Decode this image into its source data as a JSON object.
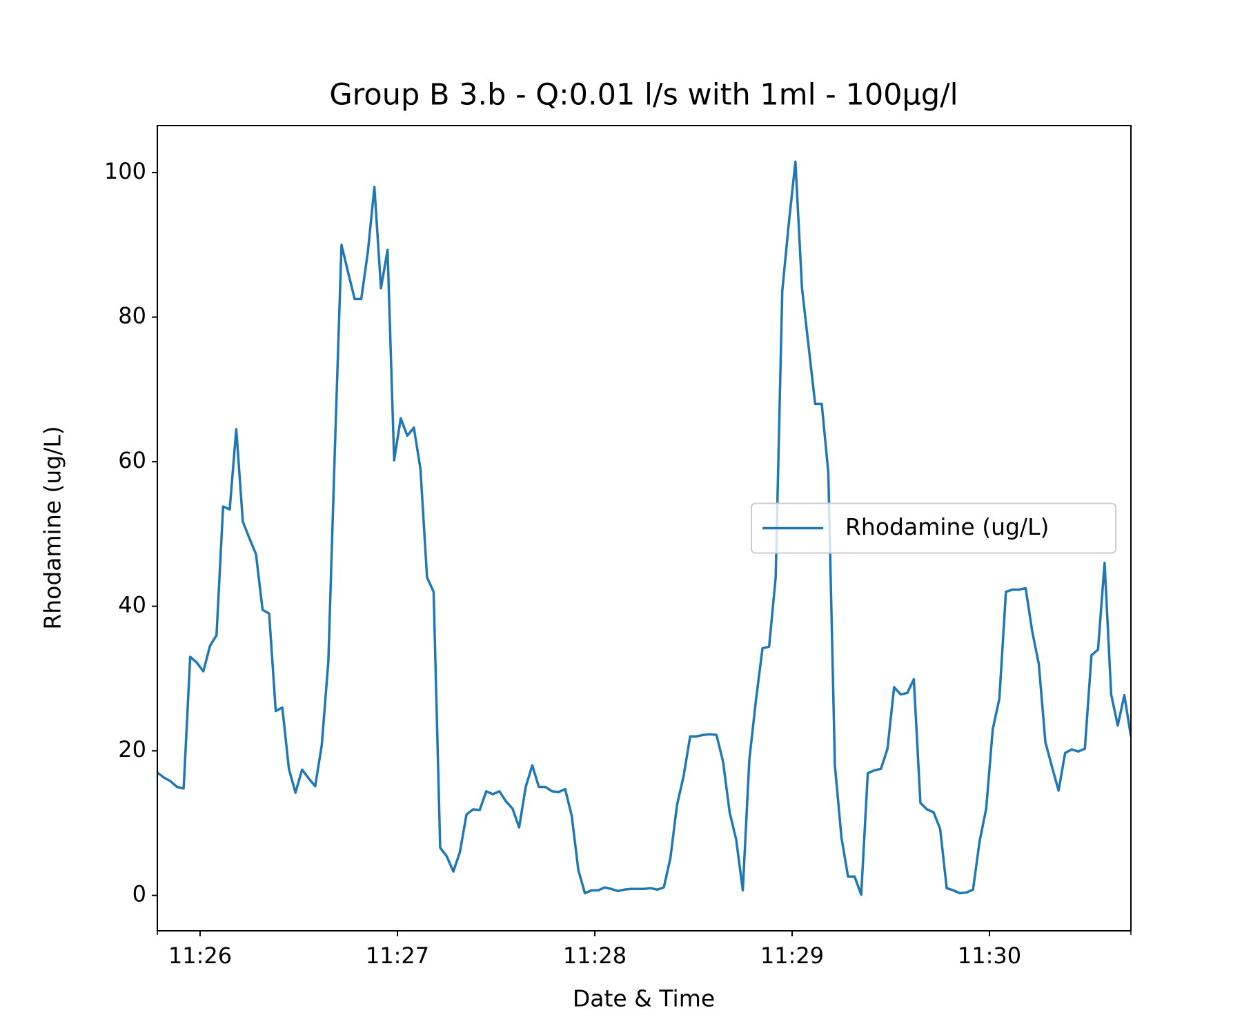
{
  "chart_data": {
    "type": "line",
    "title": "Group B 3.b - Q:0.01 l/s with 1ml - 100μg/l",
    "xlabel": "Date & Time",
    "ylabel": "Rhodamine (ug/L)",
    "x": [
      "11:25:47",
      "11:25:49",
      "11:25:51",
      "11:25:53",
      "11:25:55",
      "11:25:57",
      "11:25:59",
      "11:26:01",
      "11:26:03",
      "11:26:05",
      "11:26:07",
      "11:26:09",
      "11:26:11",
      "11:26:13",
      "11:26:15",
      "11:26:17",
      "11:26:19",
      "11:26:21",
      "11:26:23",
      "11:26:25",
      "11:26:27",
      "11:26:29",
      "11:26:31",
      "11:26:33",
      "11:26:35",
      "11:26:37",
      "11:26:39",
      "11:26:41",
      "11:26:43",
      "11:26:45",
      "11:26:47",
      "11:26:49",
      "11:26:51",
      "11:26:53",
      "11:26:55",
      "11:26:57",
      "11:26:59",
      "11:27:01",
      "11:27:03",
      "11:27:05",
      "11:27:07",
      "11:27:09",
      "11:27:11",
      "11:27:13",
      "11:27:15",
      "11:27:17",
      "11:27:19",
      "11:27:21",
      "11:27:23",
      "11:27:25",
      "11:27:27",
      "11:27:29",
      "11:27:31",
      "11:27:33",
      "11:27:35",
      "11:27:37",
      "11:27:39",
      "11:27:41",
      "11:27:43",
      "11:27:45",
      "11:27:47",
      "11:27:49",
      "11:27:51",
      "11:27:53",
      "11:27:55",
      "11:27:57",
      "11:27:59",
      "11:28:01",
      "11:28:03",
      "11:28:05",
      "11:28:07",
      "11:28:09",
      "11:28:11",
      "11:28:13",
      "11:28:15",
      "11:28:17",
      "11:28:19",
      "11:28:21",
      "11:28:23",
      "11:28:25",
      "11:28:27",
      "11:28:29",
      "11:28:31",
      "11:28:33",
      "11:28:35",
      "11:28:37",
      "11:28:39",
      "11:28:41",
      "11:28:43",
      "11:28:45",
      "11:28:47",
      "11:28:49",
      "11:28:51",
      "11:28:53",
      "11:28:55",
      "11:28:57",
      "11:28:59",
      "11:29:01",
      "11:29:03",
      "11:29:05",
      "11:29:07",
      "11:29:09",
      "11:29:11",
      "11:29:13",
      "11:29:15",
      "11:29:17",
      "11:29:19",
      "11:29:21",
      "11:29:23",
      "11:29:25",
      "11:29:27",
      "11:29:29",
      "11:29:31",
      "11:29:33",
      "11:29:35",
      "11:29:37",
      "11:29:39",
      "11:29:41",
      "11:29:43",
      "11:29:45",
      "11:29:47",
      "11:29:49",
      "11:29:51",
      "11:29:53",
      "11:29:55",
      "11:29:57",
      "11:29:59",
      "11:30:01",
      "11:30:03",
      "11:30:05",
      "11:30:07",
      "11:30:09",
      "11:30:11",
      "11:30:13",
      "11:30:15",
      "11:30:17",
      "11:30:19",
      "11:30:21",
      "11:30:23",
      "11:30:25",
      "11:30:27",
      "11:30:29",
      "11:30:31",
      "11:30:33",
      "11:30:35",
      "11:30:37",
      "11:30:39",
      "11:30:41",
      "11:30:43"
    ],
    "series": [
      {
        "name": "Rhodamine (ug/L)",
        "color": "#1f77b4",
        "values": [
          17,
          16.3,
          15.8,
          15,
          14.8,
          33,
          32.2,
          31,
          34.5,
          36,
          53.8,
          53.4,
          64.5,
          51.7,
          49.4,
          47.2,
          39.5,
          39,
          25.5,
          26,
          17.5,
          14.2,
          17.4,
          16.2,
          15.1,
          20.8,
          32.4,
          62,
          90,
          86.2,
          82.5,
          82.5,
          89,
          98,
          84,
          89.3,
          60.2,
          66,
          63.6,
          64.7,
          59,
          44,
          42,
          6.6,
          5.4,
          3.3,
          6,
          11.2,
          11.9,
          11.8,
          14.4,
          14,
          14.4,
          13,
          12,
          9.4,
          15,
          18,
          15,
          15,
          14.4,
          14.3,
          14.7,
          11,
          3.5,
          0.3,
          0.7,
          0.7,
          1.1,
          0.9,
          0.6,
          0.8,
          0.9,
          0.9,
          0.9,
          1,
          0.8,
          1.1,
          5.2,
          12.5,
          16.5,
          22,
          22,
          22.2,
          22.3,
          22.2,
          18.5,
          11.5,
          7.7,
          0.7,
          18.8,
          27,
          34.2,
          34.4,
          44,
          83.6,
          93,
          101.5,
          84,
          76,
          68,
          68,
          58.5,
          18,
          8,
          2.6,
          2.6,
          0.1,
          16.9,
          17.3,
          17.5,
          20.3,
          28.8,
          27.8,
          28,
          29.9,
          12.8,
          11.9,
          11.5,
          9.2,
          1,
          0.7,
          0.3,
          0.4,
          0.8,
          7.5,
          12,
          23,
          27.2,
          42,
          42.3,
          42.3,
          42.5,
          36.5,
          32,
          21.2,
          17.8,
          14.5,
          19.7,
          20.2,
          19.9,
          20.3,
          33.2,
          34,
          46,
          27.8,
          23.5,
          27.7,
          22
        ]
      }
    ],
    "xlim": [
      "11:25:47",
      "11:30:43"
    ],
    "xticks": [
      "11:26",
      "11:27",
      "11:28",
      "11:29",
      "11:30"
    ],
    "ylim": [
      -4.9,
      106.5
    ],
    "yticks": [
      0,
      20,
      40,
      60,
      80,
      100
    ],
    "legend": "center right",
    "grid": false
  }
}
